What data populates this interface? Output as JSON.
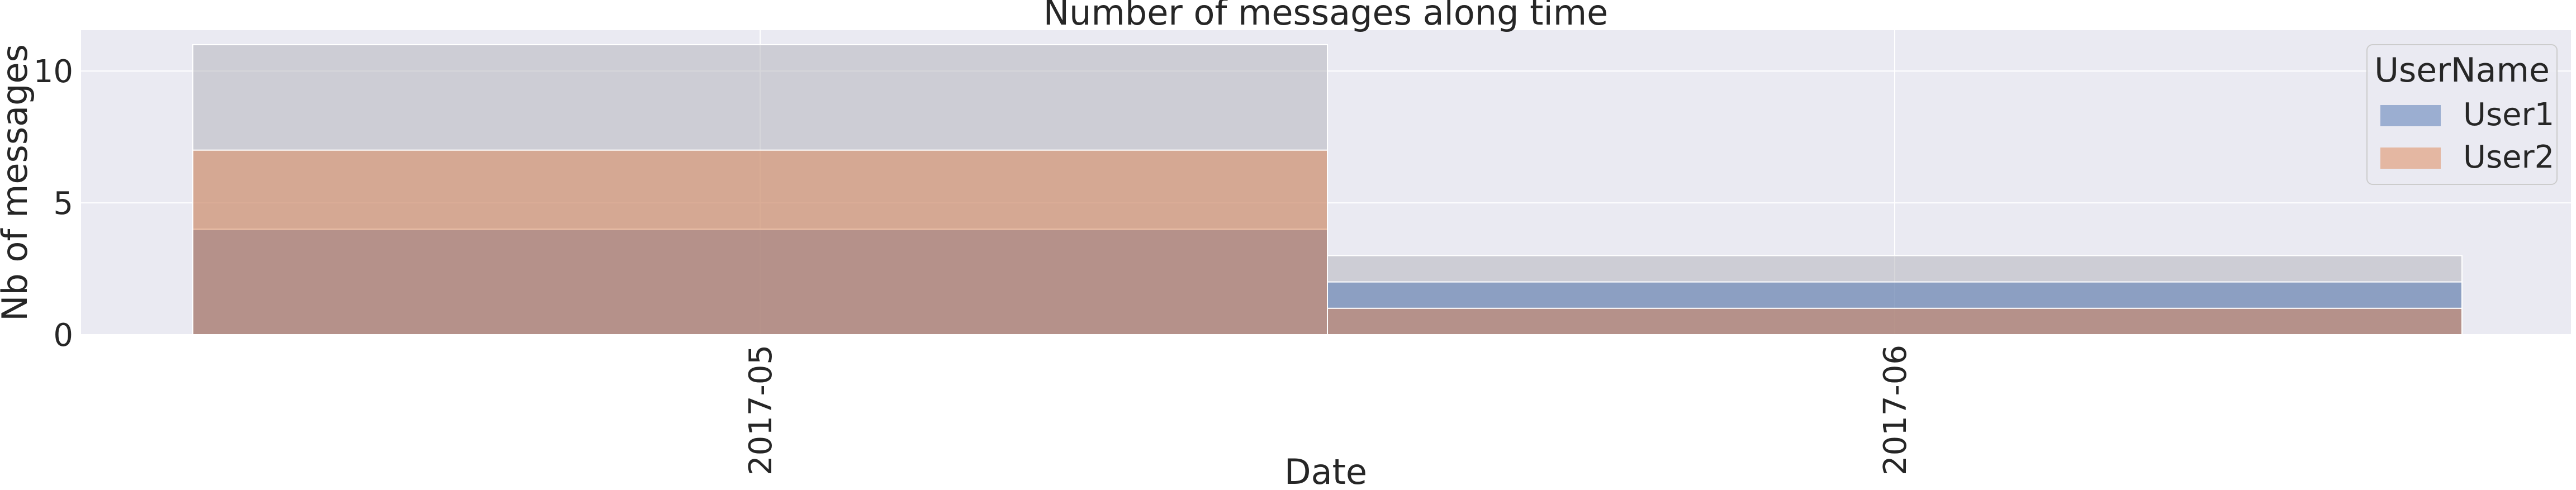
{
  "chart_data": {
    "type": "bar",
    "title": "Number of messages along time",
    "xlabel": "Date",
    "ylabel": "Nb of messages",
    "categories": [
      "2017-05",
      "2017-06"
    ],
    "series": [
      {
        "name": "User1",
        "values": [
          4,
          2
        ]
      },
      {
        "name": "User2",
        "values": [
          7,
          1
        ]
      }
    ],
    "total": [
      11,
      3
    ],
    "ylim": [
      0,
      11.55
    ],
    "yticks": [
      0,
      5,
      10
    ],
    "legend": {
      "title": "UserName",
      "placement": "top-right"
    },
    "grid": true,
    "colors": {
      "User1": "#4c72b0",
      "User2": "#dd8452",
      "total": "#b0b0b8",
      "background": "#eaeaf2",
      "grid": "#ffffff"
    }
  }
}
